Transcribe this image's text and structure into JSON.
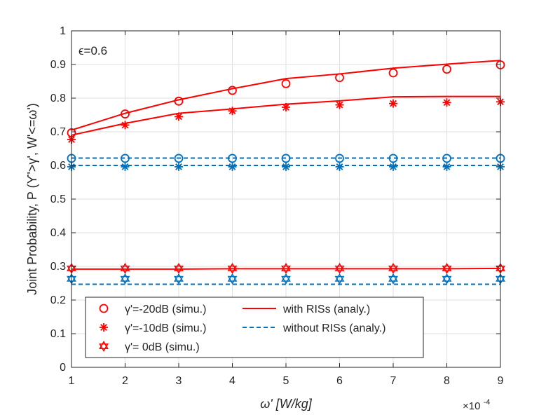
{
  "chart_data": {
    "type": "line",
    "title": "",
    "xlabel": "ω' [W/kg]",
    "ylabel": "Joint Probability, P (ϒ'>γ', W'<=ω')",
    "x_multiplier_label": "×10",
    "x_multiplier_exp": "-4",
    "annotation": "ϵ=0.6",
    "xlim": [
      1,
      9
    ],
    "ylim": [
      0,
      1
    ],
    "grid": true,
    "legend_position": "bottom-left",
    "x": [
      1,
      2,
      3,
      4,
      5,
      6,
      7,
      8,
      9
    ],
    "xticks": [
      "1",
      "2",
      "3",
      "4",
      "5",
      "6",
      "7",
      "8",
      "9"
    ],
    "yticks": [
      "0",
      "0.1",
      "0.2",
      "0.3",
      "0.4",
      "0.5",
      "0.6",
      "0.7",
      "0.8",
      "0.9",
      "1"
    ],
    "colors": {
      "red": "#ff0000",
      "blue": "#0072bd",
      "grid": "#dfdfdf",
      "axis": "#262626"
    },
    "legend": [
      {
        "label": "γ'=-20dB (simu.)",
        "marker": "circle",
        "color": "#ff0000"
      },
      {
        "label": "with RISs (analy.)",
        "line": "solid",
        "color": "#ff0000"
      },
      {
        "label": "γ'=-10dB (simu.)",
        "marker": "asterisk",
        "color": "#ff0000"
      },
      {
        "label": "without RISs (analy.)",
        "line": "dashed",
        "color": "#0072bd"
      },
      {
        "label": "γ'=   0dB (simu.)",
        "marker": "hexagram",
        "color": "#ff0000"
      }
    ],
    "series": [
      {
        "name": "with RISs (analy.), γ'=-20dB",
        "style": "solid",
        "color": "#ff0000",
        "values": [
          0.705,
          0.755,
          0.795,
          0.828,
          0.858,
          0.872,
          0.889,
          0.901,
          0.912
        ]
      },
      {
        "name": "with RISs (analy.), γ'=-10dB",
        "style": "solid",
        "color": "#ff0000",
        "values": [
          0.69,
          0.725,
          0.755,
          0.768,
          0.782,
          0.792,
          0.804,
          0.805,
          0.805
        ]
      },
      {
        "name": "with RISs (analy.), γ'=0dB",
        "style": "solid",
        "color": "#ff0000",
        "values": [
          0.292,
          0.292,
          0.292,
          0.293,
          0.293,
          0.293,
          0.293,
          0.293,
          0.294
        ]
      },
      {
        "name": "without RISs (analy.), γ'=-20dB",
        "style": "dashed",
        "color": "#0072bd",
        "values": [
          0.622,
          0.622,
          0.622,
          0.622,
          0.622,
          0.622,
          0.622,
          0.622,
          0.622
        ]
      },
      {
        "name": "without RISs (analy.), γ'=-10dB",
        "style": "dashed",
        "color": "#0072bd",
        "values": [
          0.6,
          0.6,
          0.6,
          0.6,
          0.6,
          0.6,
          0.6,
          0.6,
          0.6
        ]
      },
      {
        "name": "without RISs (analy.), γ'=0dB",
        "style": "dashed",
        "color": "#0072bd",
        "values": [
          0.247,
          0.247,
          0.247,
          0.247,
          0.247,
          0.247,
          0.247,
          0.247,
          0.247
        ]
      },
      {
        "name": "with RISs (simu.), γ'=-20dB",
        "marker": "circle",
        "color": "#ff0000",
        "values": [
          0.697,
          0.753,
          0.791,
          0.823,
          0.843,
          0.861,
          0.875,
          0.886,
          0.899
        ]
      },
      {
        "name": "with RISs (simu.), γ'=-10dB",
        "marker": "asterisk",
        "color": "#ff0000",
        "values": [
          0.677,
          0.72,
          0.745,
          0.762,
          0.773,
          0.78,
          0.784,
          0.787,
          0.789
        ]
      },
      {
        "name": "with RISs (simu.), γ'=0dB",
        "marker": "hexagram",
        "color": "#ff0000",
        "values": [
          0.294,
          0.294,
          0.294,
          0.294,
          0.294,
          0.294,
          0.294,
          0.294,
          0.294
        ]
      },
      {
        "name": "without RISs (simu.), γ'=-20dB",
        "marker": "circle",
        "color": "#0072bd",
        "values": [
          0.621,
          0.621,
          0.621,
          0.621,
          0.621,
          0.621,
          0.621,
          0.621,
          0.621
        ]
      },
      {
        "name": "without RISs (simu.), γ'=-10dB",
        "marker": "asterisk",
        "color": "#0072bd",
        "values": [
          0.596,
          0.596,
          0.596,
          0.596,
          0.596,
          0.596,
          0.596,
          0.596,
          0.596
        ]
      },
      {
        "name": "without RISs (simu.), γ'=0dB",
        "marker": "hexagram",
        "color": "#0072bd",
        "values": [
          0.263,
          0.263,
          0.263,
          0.263,
          0.263,
          0.263,
          0.263,
          0.263,
          0.263
        ]
      }
    ]
  }
}
